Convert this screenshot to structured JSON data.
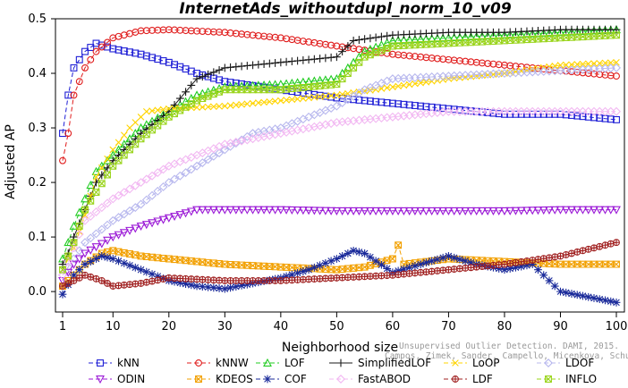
{
  "chart_data": {
    "type": "line",
    "title": "InternetAds_withoutdupl_norm_10_v09",
    "xlabel": "Neighborhood size",
    "ylabel": "Adjusted AP",
    "xlim": [
      1,
      100
    ],
    "ylim": [
      -0.03,
      0.5
    ],
    "xticks": [
      1,
      10,
      20,
      30,
      40,
      50,
      60,
      70,
      80,
      90,
      100
    ],
    "yticks": [
      0.0,
      0.1,
      0.2,
      0.3,
      0.4,
      0.5
    ],
    "ytick_labels": [
      "0.0",
      "0.1",
      "0.2",
      "0.3",
      "0.4",
      "0.5"
    ],
    "grid": false,
    "legend_position": "bottom",
    "watermark": [
      "Unsupervised Outlier Detection. DAMI, 2015.",
      "Campos, Zimek, Sander, Campello, Micenkova, Schubert, Assent, Houle"
    ],
    "series": [
      {
        "name": "kNN",
        "color": "#1f1fd6",
        "marker": "square",
        "dash": "5,3",
        "points": [
          [
            1,
            0.29
          ],
          [
            2,
            0.36
          ],
          [
            3,
            0.41
          ],
          [
            5,
            0.44
          ],
          [
            7,
            0.455
          ],
          [
            10,
            0.445
          ],
          [
            15,
            0.435
          ],
          [
            20,
            0.42
          ],
          [
            25,
            0.4
          ],
          [
            30,
            0.385
          ],
          [
            40,
            0.37
          ],
          [
            50,
            0.355
          ],
          [
            60,
            0.345
          ],
          [
            70,
            0.335
          ],
          [
            80,
            0.325
          ],
          [
            90,
            0.325
          ],
          [
            100,
            0.315
          ]
        ]
      },
      {
        "name": "kNNW",
        "color": "#e01d1d",
        "marker": "circle",
        "dash": "5,3",
        "points": [
          [
            1,
            0.24
          ],
          [
            2,
            0.29
          ],
          [
            3,
            0.36
          ],
          [
            5,
            0.41
          ],
          [
            7,
            0.44
          ],
          [
            10,
            0.465
          ],
          [
            15,
            0.478
          ],
          [
            20,
            0.48
          ],
          [
            30,
            0.475
          ],
          [
            40,
            0.465
          ],
          [
            50,
            0.45
          ],
          [
            60,
            0.435
          ],
          [
            70,
            0.425
          ],
          [
            80,
            0.415
          ],
          [
            90,
            0.405
          ],
          [
            100,
            0.395
          ]
        ]
      },
      {
        "name": "LOF",
        "color": "#22cc22",
        "marker": "triangle",
        "dash": "5,3",
        "points": [
          [
            1,
            0.06
          ],
          [
            2,
            0.09
          ],
          [
            3,
            0.12
          ],
          [
            5,
            0.17
          ],
          [
            7,
            0.22
          ],
          [
            10,
            0.25
          ],
          [
            15,
            0.3
          ],
          [
            20,
            0.33
          ],
          [
            25,
            0.36
          ],
          [
            30,
            0.375
          ],
          [
            40,
            0.38
          ],
          [
            50,
            0.39
          ],
          [
            55,
            0.44
          ],
          [
            60,
            0.46
          ],
          [
            70,
            0.465
          ],
          [
            80,
            0.47
          ],
          [
            90,
            0.475
          ],
          [
            100,
            0.48
          ]
        ]
      },
      {
        "name": "SimplifiedLOF",
        "color": "#1a1a1a",
        "marker": "plus",
        "dash": "",
        "points": [
          [
            1,
            0.05
          ],
          [
            2,
            0.07
          ],
          [
            3,
            0.1
          ],
          [
            5,
            0.15
          ],
          [
            7,
            0.2
          ],
          [
            10,
            0.24
          ],
          [
            15,
            0.29
          ],
          [
            20,
            0.33
          ],
          [
            25,
            0.39
          ],
          [
            30,
            0.41
          ],
          [
            40,
            0.42
          ],
          [
            50,
            0.43
          ],
          [
            53,
            0.46
          ],
          [
            60,
            0.47
          ],
          [
            70,
            0.475
          ],
          [
            80,
            0.475
          ],
          [
            90,
            0.48
          ],
          [
            100,
            0.48
          ]
        ]
      },
      {
        "name": "LoOP",
        "color": "#ffd400",
        "marker": "x",
        "dash": "5,3",
        "points": [
          [
            1,
            0.04
          ],
          [
            3,
            0.08
          ],
          [
            5,
            0.14
          ],
          [
            7,
            0.21
          ],
          [
            10,
            0.26
          ],
          [
            13,
            0.3
          ],
          [
            16,
            0.33
          ],
          [
            20,
            0.335
          ],
          [
            30,
            0.34
          ],
          [
            40,
            0.35
          ],
          [
            50,
            0.36
          ],
          [
            60,
            0.375
          ],
          [
            70,
            0.39
          ],
          [
            80,
            0.4
          ],
          [
            90,
            0.415
          ],
          [
            100,
            0.42
          ]
        ]
      },
      {
        "name": "LDOF",
        "color": "#b8b8ee",
        "marker": "diamond",
        "dash": "5,3",
        "points": [
          [
            1,
            0.03
          ],
          [
            3,
            0.06
          ],
          [
            5,
            0.09
          ],
          [
            10,
            0.13
          ],
          [
            15,
            0.16
          ],
          [
            20,
            0.2
          ],
          [
            25,
            0.23
          ],
          [
            30,
            0.26
          ],
          [
            35,
            0.29
          ],
          [
            40,
            0.3
          ],
          [
            45,
            0.32
          ],
          [
            50,
            0.34
          ],
          [
            55,
            0.37
          ],
          [
            60,
            0.39
          ],
          [
            70,
            0.395
          ],
          [
            80,
            0.4
          ],
          [
            90,
            0.405
          ],
          [
            100,
            0.41
          ]
        ]
      },
      {
        "name": "ODIN",
        "color": "#9b1ad6",
        "marker": "triangle-down",
        "dash": "5,3",
        "points": [
          [
            1,
            0.02
          ],
          [
            3,
            0.05
          ],
          [
            5,
            0.07
          ],
          [
            10,
            0.1
          ],
          [
            15,
            0.12
          ],
          [
            20,
            0.135
          ],
          [
            25,
            0.15
          ],
          [
            30,
            0.15
          ],
          [
            40,
            0.15
          ],
          [
            50,
            0.148
          ],
          [
            60,
            0.148
          ],
          [
            70,
            0.148
          ],
          [
            80,
            0.148
          ],
          [
            90,
            0.15
          ],
          [
            100,
            0.15
          ]
        ]
      },
      {
        "name": "KDEOS",
        "color": "#f2a000",
        "marker": "square-x",
        "dash": "5,3",
        "points": [
          [
            1,
            0.01
          ],
          [
            3,
            0.03
          ],
          [
            5,
            0.05
          ],
          [
            8,
            0.07
          ],
          [
            10,
            0.075
          ],
          [
            15,
            0.065
          ],
          [
            20,
            0.06
          ],
          [
            25,
            0.055
          ],
          [
            30,
            0.05
          ],
          [
            40,
            0.045
          ],
          [
            50,
            0.04
          ],
          [
            55,
            0.045
          ],
          [
            60,
            0.06
          ],
          [
            61,
            0.085
          ],
          [
            62,
            0.05
          ],
          [
            70,
            0.06
          ],
          [
            80,
            0.055
          ],
          [
            90,
            0.05
          ],
          [
            100,
            0.05
          ]
        ]
      },
      {
        "name": "COF",
        "color": "#1a2a9a",
        "marker": "star",
        "dash": "5,3",
        "points": [
          [
            1,
            -0.005
          ],
          [
            3,
            0.03
          ],
          [
            5,
            0.05
          ],
          [
            8,
            0.065
          ],
          [
            10,
            0.06
          ],
          [
            15,
            0.04
          ],
          [
            20,
            0.02
          ],
          [
            25,
            0.01
          ],
          [
            30,
            0.005
          ],
          [
            35,
            0.015
          ],
          [
            40,
            0.025
          ],
          [
            45,
            0.04
          ],
          [
            50,
            0.06
          ],
          [
            53,
            0.075
          ],
          [
            55,
            0.07
          ],
          [
            60,
            0.035
          ],
          [
            65,
            0.05
          ],
          [
            70,
            0.065
          ],
          [
            75,
            0.05
          ],
          [
            80,
            0.04
          ],
          [
            85,
            0.05
          ],
          [
            90,
            0.0
          ],
          [
            95,
            -0.01
          ],
          [
            100,
            -0.02
          ]
        ]
      },
      {
        "name": "FastABOD",
        "color": "#f2b8f2",
        "marker": "diamond",
        "dash": "5,3",
        "points": [
          [
            1,
            0.03
          ],
          [
            3,
            0.08
          ],
          [
            5,
            0.13
          ],
          [
            10,
            0.17
          ],
          [
            15,
            0.2
          ],
          [
            20,
            0.23
          ],
          [
            25,
            0.25
          ],
          [
            30,
            0.27
          ],
          [
            40,
            0.29
          ],
          [
            50,
            0.31
          ],
          [
            60,
            0.32
          ],
          [
            70,
            0.33
          ],
          [
            80,
            0.33
          ],
          [
            90,
            0.33
          ],
          [
            100,
            0.33
          ]
        ]
      },
      {
        "name": "LDF",
        "color": "#a02020",
        "marker": "circle-plus",
        "dash": "5,3",
        "points": [
          [
            1,
            0.01
          ],
          [
            3,
            0.02
          ],
          [
            5,
            0.03
          ],
          [
            8,
            0.02
          ],
          [
            10,
            0.01
          ],
          [
            15,
            0.015
          ],
          [
            20,
            0.025
          ],
          [
            30,
            0.02
          ],
          [
            40,
            0.02
          ],
          [
            50,
            0.025
          ],
          [
            60,
            0.03
          ],
          [
            70,
            0.04
          ],
          [
            80,
            0.05
          ],
          [
            90,
            0.065
          ],
          [
            100,
            0.09
          ]
        ]
      },
      {
        "name": "INFLO",
        "color": "#99d41a",
        "marker": "square-x",
        "dash": "5,3",
        "points": [
          [
            1,
            0.04
          ],
          [
            3,
            0.09
          ],
          [
            5,
            0.15
          ],
          [
            10,
            0.23
          ],
          [
            15,
            0.28
          ],
          [
            20,
            0.32
          ],
          [
            25,
            0.35
          ],
          [
            30,
            0.37
          ],
          [
            40,
            0.37
          ],
          [
            50,
            0.38
          ],
          [
            55,
            0.43
          ],
          [
            60,
            0.45
          ],
          [
            70,
            0.455
          ],
          [
            80,
            0.46
          ],
          [
            90,
            0.465
          ],
          [
            100,
            0.47
          ]
        ]
      }
    ]
  }
}
